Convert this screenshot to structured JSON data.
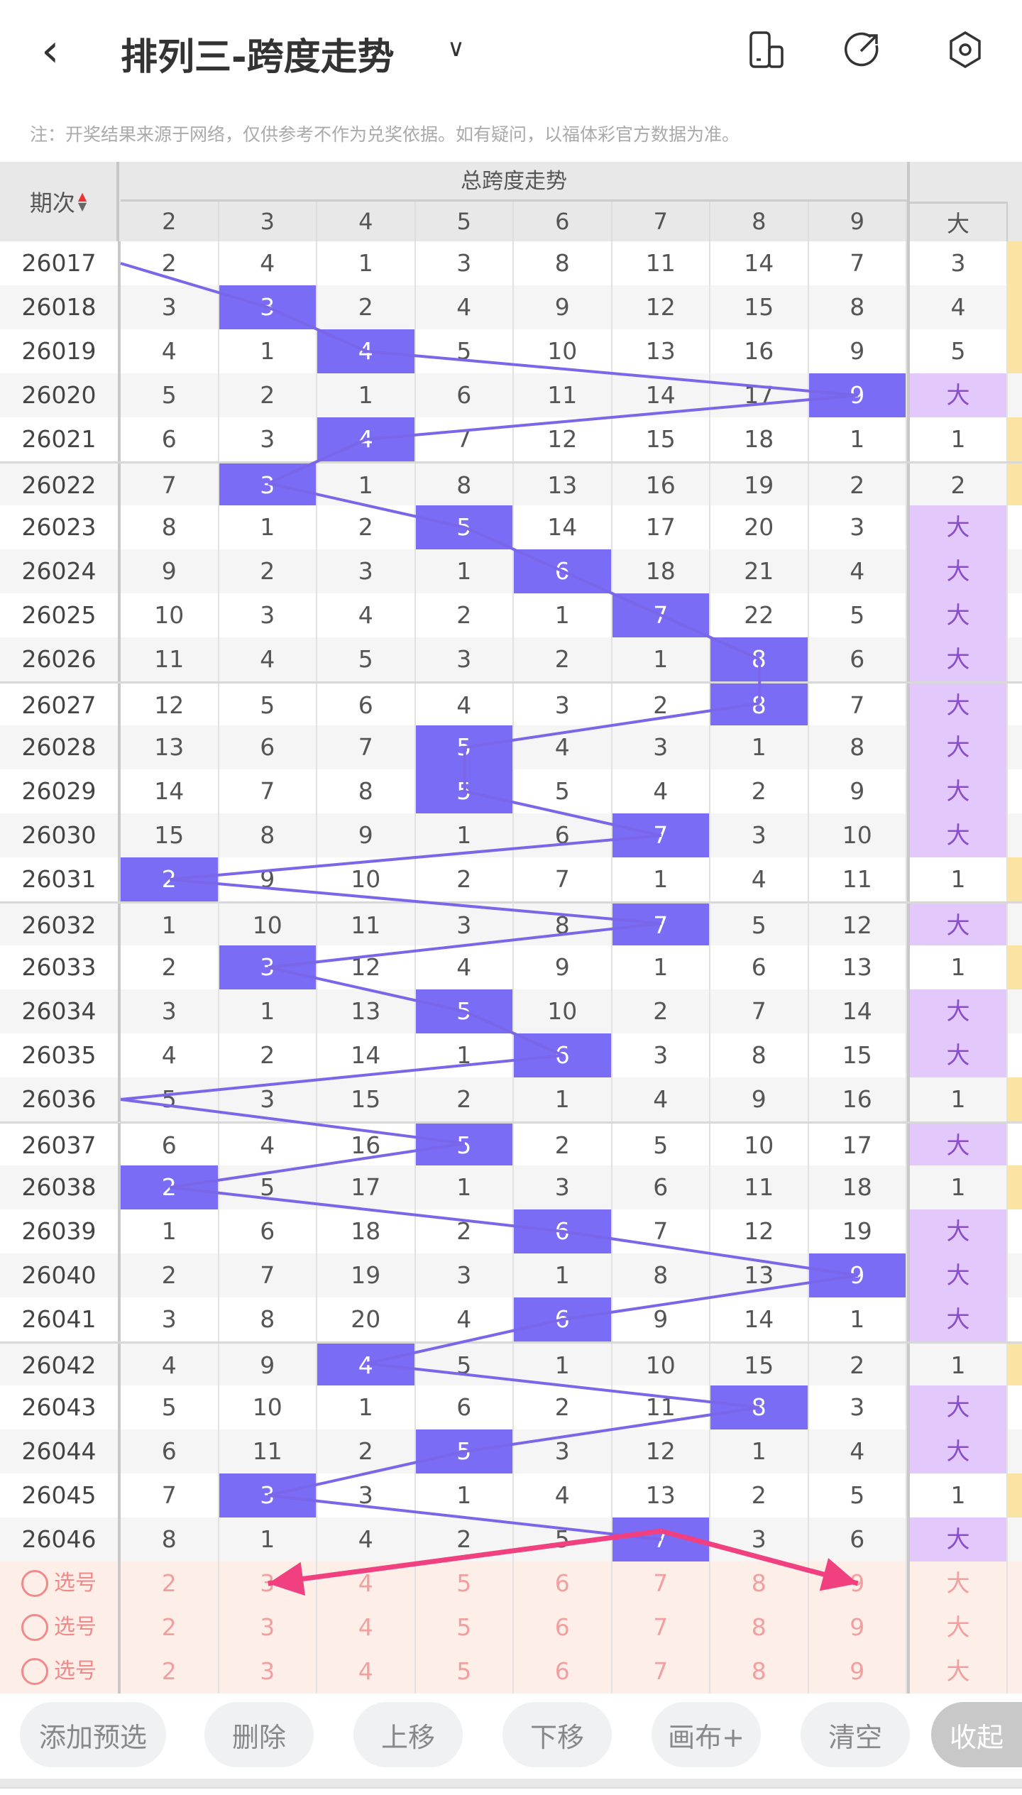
{
  "header": {
    "title": "排列三-跨度走势",
    "note": "注：开奖结果来源于网络，仅供参考不作为兑奖依据。如有疑问，以福体彩官方数据为准。"
  },
  "table": {
    "period_label": "期次",
    "group_label": "总跨度走势",
    "columns": [
      "2",
      "3",
      "4",
      "5",
      "6",
      "7",
      "8",
      "9"
    ],
    "big_label": "大",
    "rows": [
      {
        "p": "26017",
        "v": [
          "2",
          "4",
          "1",
          "3",
          "8",
          "11",
          "14",
          "7"
        ],
        "h": -1,
        "big": "3"
      },
      {
        "p": "26018",
        "v": [
          "3",
          "3",
          "2",
          "4",
          "9",
          "12",
          "15",
          "8"
        ],
        "h": 1,
        "big": "4"
      },
      {
        "p": "26019",
        "v": [
          "4",
          "1",
          "4",
          "5",
          "10",
          "13",
          "16",
          "9"
        ],
        "h": 2,
        "big": "5"
      },
      {
        "p": "26020",
        "v": [
          "5",
          "2",
          "1",
          "6",
          "11",
          "14",
          "17",
          "9"
        ],
        "h": 7,
        "big": "大"
      },
      {
        "p": "26021",
        "v": [
          "6",
          "3",
          "4",
          "7",
          "12",
          "15",
          "18",
          "1"
        ],
        "h": 2,
        "big": "1"
      },
      {
        "p": "26022",
        "v": [
          "7",
          "3",
          "1",
          "8",
          "13",
          "16",
          "19",
          "2"
        ],
        "h": 1,
        "big": "2"
      },
      {
        "p": "26023",
        "v": [
          "8",
          "1",
          "2",
          "5",
          "14",
          "17",
          "20",
          "3"
        ],
        "h": 3,
        "big": "大"
      },
      {
        "p": "26024",
        "v": [
          "9",
          "2",
          "3",
          "1",
          "6",
          "18",
          "21",
          "4"
        ],
        "h": 4,
        "big": "大"
      },
      {
        "p": "26025",
        "v": [
          "10",
          "3",
          "4",
          "2",
          "1",
          "7",
          "22",
          "5"
        ],
        "h": 5,
        "big": "大"
      },
      {
        "p": "26026",
        "v": [
          "11",
          "4",
          "5",
          "3",
          "2",
          "1",
          "8",
          "6"
        ],
        "h": 6,
        "big": "大"
      },
      {
        "p": "26027",
        "v": [
          "12",
          "5",
          "6",
          "4",
          "3",
          "2",
          "8",
          "7"
        ],
        "h": 6,
        "big": "大"
      },
      {
        "p": "26028",
        "v": [
          "13",
          "6",
          "7",
          "5",
          "4",
          "3",
          "1",
          "8"
        ],
        "h": 3,
        "big": "大"
      },
      {
        "p": "26029",
        "v": [
          "14",
          "7",
          "8",
          "5",
          "5",
          "4",
          "2",
          "9"
        ],
        "h": 3,
        "big": "大"
      },
      {
        "p": "26030",
        "v": [
          "15",
          "8",
          "9",
          "1",
          "6",
          "7",
          "3",
          "10"
        ],
        "h": 5,
        "big": "大"
      },
      {
        "p": "26031",
        "v": [
          "2",
          "9",
          "10",
          "2",
          "7",
          "1",
          "4",
          "11"
        ],
        "h": 0,
        "big": "1"
      },
      {
        "p": "26032",
        "v": [
          "1",
          "10",
          "11",
          "3",
          "8",
          "7",
          "5",
          "12"
        ],
        "h": 5,
        "big": "大"
      },
      {
        "p": "26033",
        "v": [
          "2",
          "3",
          "12",
          "4",
          "9",
          "1",
          "6",
          "13"
        ],
        "h": 1,
        "big": "1"
      },
      {
        "p": "26034",
        "v": [
          "3",
          "1",
          "13",
          "5",
          "10",
          "2",
          "7",
          "14"
        ],
        "h": 3,
        "big": "大"
      },
      {
        "p": "26035",
        "v": [
          "4",
          "2",
          "14",
          "1",
          "6",
          "3",
          "8",
          "15"
        ],
        "h": 4,
        "big": "大"
      },
      {
        "p": "26036",
        "v": [
          "5",
          "3",
          "15",
          "2",
          "1",
          "4",
          "9",
          "16"
        ],
        "h": -1,
        "big": "1"
      },
      {
        "p": "26037",
        "v": [
          "6",
          "4",
          "16",
          "5",
          "2",
          "5",
          "10",
          "17"
        ],
        "h": 3,
        "big": "大"
      },
      {
        "p": "26038",
        "v": [
          "2",
          "5",
          "17",
          "1",
          "3",
          "6",
          "11",
          "18"
        ],
        "h": 0,
        "big": "1"
      },
      {
        "p": "26039",
        "v": [
          "1",
          "6",
          "18",
          "2",
          "6",
          "7",
          "12",
          "19"
        ],
        "h": 4,
        "big": "大"
      },
      {
        "p": "26040",
        "v": [
          "2",
          "7",
          "19",
          "3",
          "1",
          "8",
          "13",
          "9"
        ],
        "h": 7,
        "big": "大"
      },
      {
        "p": "26041",
        "v": [
          "3",
          "8",
          "20",
          "4",
          "6",
          "9",
          "14",
          "1"
        ],
        "h": 4,
        "big": "大"
      },
      {
        "p": "26042",
        "v": [
          "4",
          "9",
          "4",
          "5",
          "1",
          "10",
          "15",
          "2"
        ],
        "h": 2,
        "big": "1"
      },
      {
        "p": "26043",
        "v": [
          "5",
          "10",
          "1",
          "6",
          "2",
          "11",
          "8",
          "3"
        ],
        "h": 6,
        "big": "大"
      },
      {
        "p": "26044",
        "v": [
          "6",
          "11",
          "2",
          "5",
          "3",
          "12",
          "1",
          "4"
        ],
        "h": 3,
        "big": "大"
      },
      {
        "p": "26045",
        "v": [
          "7",
          "3",
          "3",
          "1",
          "4",
          "13",
          "2",
          "5"
        ],
        "h": 1,
        "big": "1"
      },
      {
        "p": "26046",
        "v": [
          "8",
          "1",
          "4",
          "2",
          "5",
          "7",
          "3",
          "6"
        ],
        "h": 5,
        "big": "大"
      }
    ],
    "select_rows": [
      {
        "label": "选号",
        "v": [
          "2",
          "3",
          "4",
          "5",
          "6",
          "7",
          "8",
          "9"
        ],
        "big": "大"
      },
      {
        "label": "选号",
        "v": [
          "2",
          "3",
          "4",
          "5",
          "6",
          "7",
          "8",
          "9"
        ],
        "big": "大"
      },
      {
        "label": "选号",
        "v": [
          "2",
          "3",
          "4",
          "5",
          "6",
          "7",
          "8",
          "9"
        ],
        "big": "大"
      }
    ]
  },
  "buttons": [
    "添加预选",
    "删除",
    "上移",
    "下移",
    "画布+",
    "清空",
    "收起"
  ],
  "colors": {
    "highlight": "#7b6cf6",
    "line": "#7a66e8",
    "arrow": "#f04080",
    "big_bg": "#e2c8fb",
    "strip": "#fbe3a4"
  }
}
